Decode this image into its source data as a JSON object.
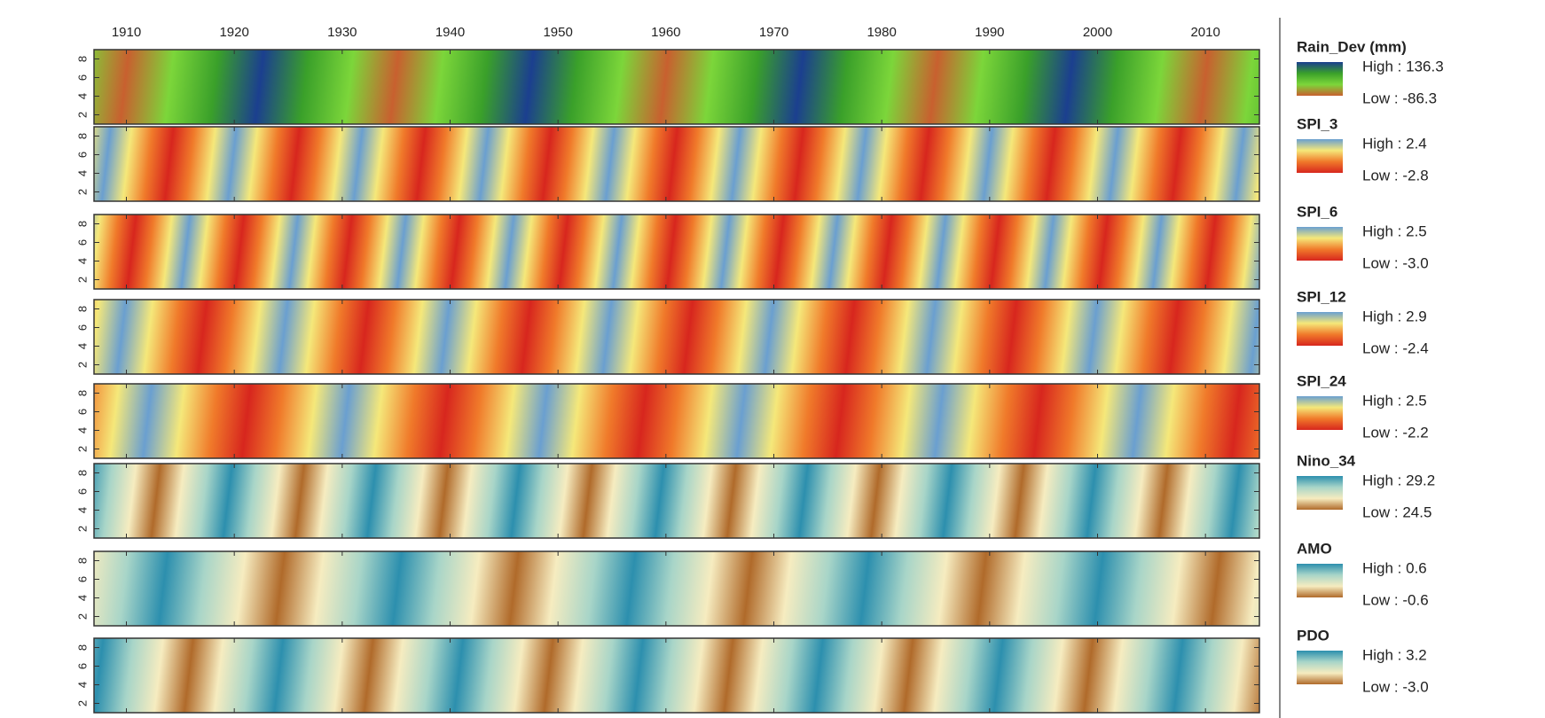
{
  "chart_data": {
    "type": "heatmap-stack",
    "xlim": [
      1907,
      2015
    ],
    "xticks": [
      1910,
      1920,
      1930,
      1940,
      1950,
      1960,
      1970,
      1980,
      1990,
      2000,
      2010
    ],
    "ylim": [
      1,
      9
    ],
    "yticks": [
      2,
      4,
      6,
      8
    ],
    "panels": [
      {
        "name": "Rain_Dev (mm)",
        "high": "High : 136.3",
        "low": "Low : -86.3",
        "colors": [
          "#1b3f8f",
          "#3aa02a",
          "#7cd63a",
          "#c8602f"
        ]
      },
      {
        "name": "SPI_3",
        "high": "High : 2.4",
        "low": "Low : -2.8",
        "colors": [
          "#6a9fd0",
          "#f5e87a",
          "#f07a2a",
          "#d7261e"
        ]
      },
      {
        "name": "SPI_6",
        "high": "High : 2.5",
        "low": "Low : -3.0",
        "colors": [
          "#6a9fd0",
          "#f5e87a",
          "#f07a2a",
          "#d7261e"
        ]
      },
      {
        "name": "SPI_12",
        "high": "High : 2.9",
        "low": "Low : -2.4",
        "colors": [
          "#6a9fd0",
          "#f5e87a",
          "#f07a2a",
          "#d7261e"
        ]
      },
      {
        "name": "SPI_24",
        "high": "High : 2.5",
        "low": "Low : -2.2",
        "colors": [
          "#6a9fd0",
          "#f5e87a",
          "#f07a2a",
          "#d7261e"
        ]
      },
      {
        "name": "Nino_34",
        "high": "High : 29.2",
        "low": "Low : 24.5",
        "colors": [
          "#2c8fae",
          "#a8d5c8",
          "#f6ecc0",
          "#b06a2a"
        ]
      },
      {
        "name": "AMO",
        "high": "High : 0.6",
        "low": "Low : -0.6",
        "colors": [
          "#2c8fae",
          "#a8d5c8",
          "#f6ecc0",
          "#b06a2a"
        ]
      },
      {
        "name": "PDO",
        "high": "High : 3.2",
        "low": "Low : -3.0",
        "colors": [
          "#2c8fae",
          "#a8d5c8",
          "#f6ecc0",
          "#b06a2a"
        ]
      }
    ]
  }
}
